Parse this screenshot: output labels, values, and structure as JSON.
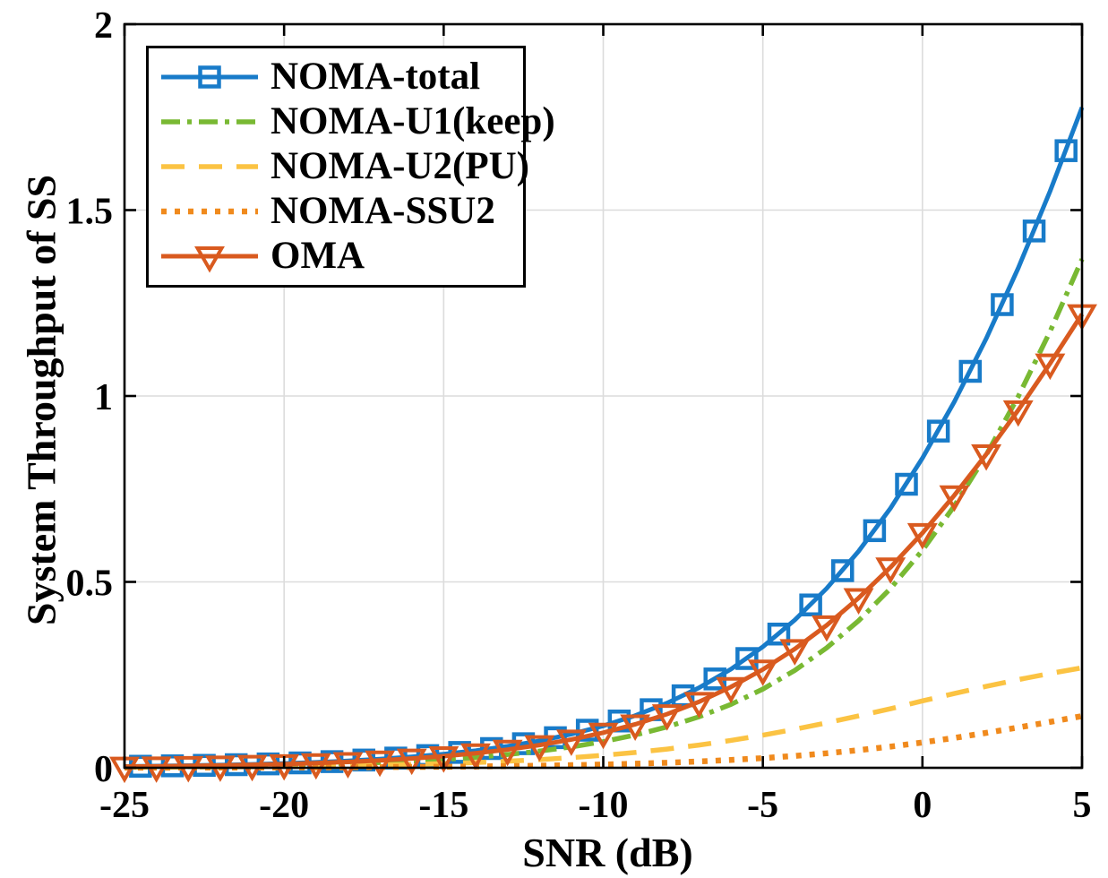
{
  "chart_data": {
    "type": "line",
    "title": "",
    "xlabel": "SNR (dB)",
    "ylabel": "System Throughput of SS",
    "xlim": [
      -25,
      5
    ],
    "ylim": [
      0,
      2
    ],
    "xticks": [
      -25,
      -20,
      -15,
      -10,
      -5,
      0,
      5
    ],
    "xtick_labels": [
      "-25",
      "-20",
      "-15",
      "-10",
      "-5",
      "0",
      "5"
    ],
    "yticks": [
      0,
      0.5,
      1,
      1.5,
      2
    ],
    "ytick_labels": [
      "0",
      "0.5",
      "1",
      "1.5",
      "2"
    ],
    "grid": true,
    "grid_color": "#dcdcdc",
    "axis_color": "#000000",
    "background": "#ffffff",
    "legend_position": "top-left",
    "x": [
      -25,
      -24,
      -23,
      -22,
      -21,
      -20,
      -19,
      -18,
      -17,
      -16,
      -15,
      -14,
      -13,
      -12,
      -11,
      -10,
      -9,
      -8,
      -7,
      -6,
      -5,
      -4,
      -3,
      -2,
      -1,
      0,
      1,
      2,
      3,
      4,
      5
    ],
    "series": [
      {
        "name": "NOMA-total",
        "color": "#187bc9",
        "line": "solid",
        "marker": "square",
        "values": [
          0.0037,
          0.0047,
          0.0059,
          0.0074,
          0.0094,
          0.0118,
          0.0148,
          0.0186,
          0.0234,
          0.0294,
          0.0369,
          0.0462,
          0.0579,
          0.0725,
          0.0905,
          0.1128,
          0.1404,
          0.1741,
          0.2153,
          0.2653,
          0.3255,
          0.3975,
          0.4826,
          0.5825,
          0.6982,
          0.8329,
          0.9846,
          1.1547,
          1.3438,
          1.5511,
          1.7761
        ],
        "marker_x": [
          -24.5,
          -23.5,
          -22.5,
          -21.5,
          -20.5,
          -19.5,
          -18.5,
          -17.5,
          -16.5,
          -15.5,
          -14.5,
          -13.5,
          -12.5,
          -11.5,
          -10.5,
          -9.5,
          -8.5,
          -7.5,
          -6.5,
          -5.5,
          -4.5,
          -3.5,
          -2.5,
          -1.5,
          -0.5,
          0.5,
          1.5,
          2.5,
          3.5,
          4.5
        ],
        "marker_values": [
          0.0042,
          0.0053,
          0.0066,
          0.0084,
          0.0105,
          0.0132,
          0.0166,
          0.0209,
          0.0262,
          0.0329,
          0.0413,
          0.0518,
          0.0648,
          0.081,
          0.1011,
          0.1259,
          0.1563,
          0.1937,
          0.239,
          0.2939,
          0.3597,
          0.438,
          0.5302,
          0.6378,
          0.7626,
          0.9056,
          1.0663,
          1.2457,
          1.4438,
          1.6598
        ]
      },
      {
        "name": "NOMA-U1(keep)",
        "color": "#79b933",
        "line": "dashdot",
        "marker": null,
        "values": [
          0.0023,
          0.0029,
          0.0036,
          0.0045,
          0.0057,
          0.0072,
          0.0091,
          0.0114,
          0.0143,
          0.018,
          0.0226,
          0.0284,
          0.0357,
          0.0448,
          0.0562,
          0.0704,
          0.0881,
          0.11,
          0.1372,
          0.1706,
          0.2117,
          0.2619,
          0.3226,
          0.3956,
          0.4824,
          0.585,
          0.7043,
          0.8418,
          0.9983,
          1.1737,
          1.3681
        ]
      },
      {
        "name": "NOMA-U2(PU)",
        "color": "#fbc343",
        "line": "dashed",
        "marker": null,
        "values": [
          0.0012,
          0.0015,
          0.0019,
          0.0023,
          0.0029,
          0.0037,
          0.0046,
          0.0058,
          0.0073,
          0.0091,
          0.0114,
          0.0142,
          0.0177,
          0.022,
          0.0273,
          0.0336,
          0.0413,
          0.0504,
          0.0611,
          0.0736,
          0.0878,
          0.1036,
          0.121,
          0.1395,
          0.1588,
          0.1799,
          0.1998,
          0.219,
          0.2371,
          0.2538,
          0.2689
        ]
      },
      {
        "name": "NOMA-SSU2",
        "color": "#f08a1d",
        "line": "dotted",
        "marker": null,
        "values": [
          0.0003,
          0.0004,
          0.0005,
          0.0006,
          0.0007,
          0.0009,
          0.0011,
          0.0014,
          0.0018,
          0.0023,
          0.0029,
          0.0036,
          0.0045,
          0.0056,
          0.0071,
          0.0088,
          0.011,
          0.0137,
          0.017,
          0.0211,
          0.026,
          0.032,
          0.039,
          0.0474,
          0.057,
          0.0681,
          0.0804,
          0.094,
          0.1084,
          0.1235,
          0.1391
        ]
      },
      {
        "name": "OMA",
        "color": "#d95a1f",
        "line": "solid",
        "marker": "triangle-down",
        "values": [
          0.0032,
          0.004,
          0.005,
          0.0063,
          0.008,
          0.01,
          0.0126,
          0.0158,
          0.0199,
          0.0249,
          0.0312,
          0.0391,
          0.0489,
          0.0611,
          0.0761,
          0.0945,
          0.117,
          0.1444,
          0.1775,
          0.2175,
          0.2644,
          0.3196,
          0.3834,
          0.4567,
          0.5393,
          0.6315,
          0.733,
          0.8433,
          0.9618,
          1.0876,
          1.2201
        ]
      }
    ]
  }
}
